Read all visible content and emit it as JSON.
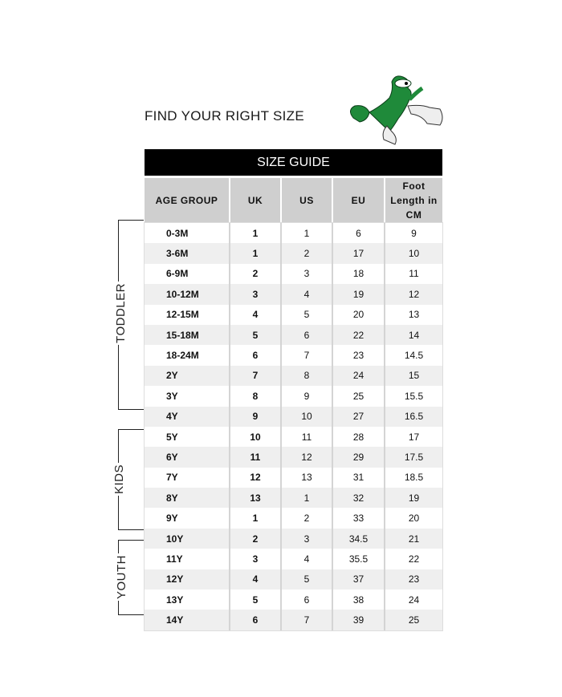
{
  "heading": "FIND YOUR RIGHT SIZE",
  "title": "SIZE GUIDE",
  "columns": [
    "AGE GROUP",
    "UK",
    "US",
    "EU",
    "Foot Length in CM"
  ],
  "groups": [
    "TODDLER",
    "KIDS",
    "YOUTH"
  ],
  "rows": [
    [
      "0-3M",
      "1",
      "1",
      "6",
      "9"
    ],
    [
      "3-6M",
      "1",
      "2",
      "17",
      "10"
    ],
    [
      "6-9M",
      "2",
      "3",
      "18",
      "11"
    ],
    [
      "10-12M",
      "3",
      "4",
      "19",
      "12"
    ],
    [
      "12-15M",
      "4",
      "5",
      "20",
      "13"
    ],
    [
      "15-18M",
      "5",
      "6",
      "22",
      "14"
    ],
    [
      "18-24M",
      "6",
      "7",
      "23",
      "14.5"
    ],
    [
      "2Y",
      "7",
      "8",
      "24",
      "15"
    ],
    [
      "3Y",
      "8",
      "9",
      "25",
      "15.5"
    ],
    [
      "4Y",
      "9",
      "10",
      "27",
      "16.5"
    ],
    [
      "5Y",
      "10",
      "11",
      "28",
      "17"
    ],
    [
      "6Y",
      "11",
      "12",
      "29",
      "17.5"
    ],
    [
      "7Y",
      "12",
      "13",
      "31",
      "18.5"
    ],
    [
      "8Y",
      "13",
      "1",
      "32",
      "19"
    ],
    [
      "9Y",
      "1",
      "2",
      "33",
      "20"
    ],
    [
      "10Y",
      "2",
      "3",
      "34.5",
      "21"
    ],
    [
      "11Y",
      "3",
      "4",
      "35.5",
      "22"
    ],
    [
      "12Y",
      "4",
      "5",
      "37",
      "23"
    ],
    [
      "13Y",
      "5",
      "6",
      "38",
      "24"
    ],
    [
      "14Y",
      "6",
      "7",
      "39",
      "25"
    ]
  ],
  "colors": {
    "mascot": "#1f8a3a",
    "header_bg": "#000000",
    "column_header_bg": "#cfcfcf"
  }
}
